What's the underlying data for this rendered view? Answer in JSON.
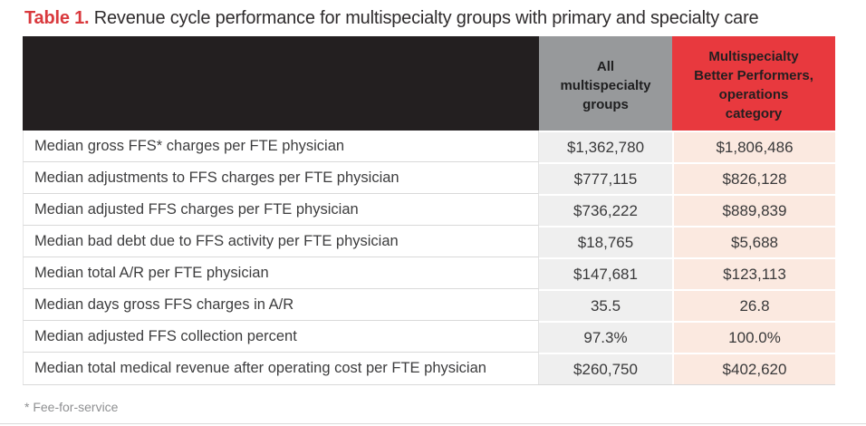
{
  "title": {
    "label": "Table 1.",
    "text": " Revenue cycle performance for multispecialty groups with primary and specialty care"
  },
  "chart_data": {
    "type": "table",
    "title": "Table 1. Revenue cycle performance for multispecialty groups with primary and specialty care",
    "columns": [
      "",
      "All\nmultispecialty\ngroups",
      "Multispecialty\nBetter Performers,\noperations\ncategory"
    ],
    "rows": [
      [
        "Median gross FFS* charges per FTE physician",
        "$1,362,780",
        "$1,806,486"
      ],
      [
        "Median adjustments to FFS charges per FTE physician",
        "$777,115",
        "$826,128"
      ],
      [
        "Median adjusted FFS charges per FTE physician",
        "$736,222",
        "$889,839"
      ],
      [
        "Median bad debt due to FFS activity per FTE physician",
        "$18,765",
        "$5,688"
      ],
      [
        "Median total A/R per FTE physician",
        "$147,681",
        "$123,113"
      ],
      [
        "Median days gross FFS charges in A/R",
        "35.5",
        "26.8"
      ],
      [
        "Median adjusted FFS collection percent",
        "97.3%",
        "100.0%"
      ],
      [
        "Median total medical revenue after operating cost per FTE physician",
        "$260,750",
        "$402,620"
      ]
    ],
    "footnote": "* Fee-for-service"
  },
  "colors": {
    "header_black": "#231F20",
    "header_gray": "#97999B",
    "header_red": "#E8393E",
    "cell_gray": "#EFEFEF",
    "cell_pink": "#FBE9E0",
    "title_red": "#D9393D"
  }
}
